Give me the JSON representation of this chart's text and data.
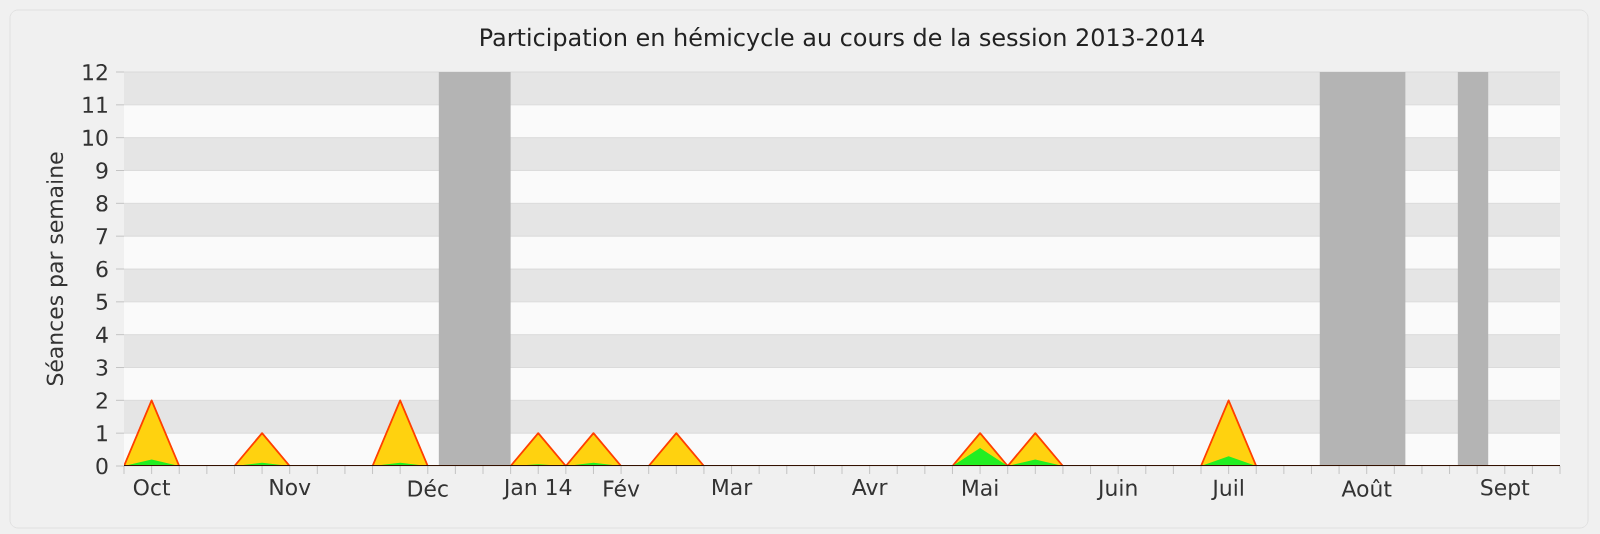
{
  "chart_data": {
    "type": "area",
    "title": "Participation en hémicycle au cours de la session 2013-2014",
    "ylabel": "Séances par semaine",
    "categories": [
      null,
      "Oct",
      null,
      null,
      null,
      null,
      "Nov",
      null,
      null,
      null,
      null,
      "Déc",
      null,
      null,
      null,
      "Jan 14",
      null,
      null,
      "Fév",
      null,
      null,
      null,
      "Mar",
      null,
      null,
      null,
      null,
      "Avr",
      null,
      null,
      null,
      "Mai",
      null,
      null,
      null,
      null,
      "Juin",
      null,
      null,
      null,
      "Juil",
      null,
      null,
      null,
      null,
      "Août",
      null,
      null,
      null,
      null,
      "Sept",
      null,
      null
    ],
    "series": [
      {
        "color": "#ffd20f",
        "values": [
          0,
          2,
          0,
          0,
          0,
          1,
          0,
          0,
          0,
          0,
          2,
          0,
          0,
          0,
          0,
          1,
          0,
          1,
          0,
          0,
          1,
          0,
          0,
          0,
          0,
          0,
          0,
          0,
          0,
          0,
          0,
          1,
          0,
          1,
          0,
          0,
          0,
          0,
          0,
          0,
          2,
          0,
          0,
          0,
          0,
          0,
          0,
          0,
          0,
          0,
          0,
          0,
          0
        ]
      },
      {
        "color": "#22ee22",
        "values": [
          0,
          0.2,
          0,
          0,
          0,
          0.1,
          0,
          0,
          0,
          0,
          0.1,
          0,
          0,
          0,
          0,
          0.05,
          0,
          0.1,
          0,
          0,
          0,
          0,
          0,
          0,
          0,
          0,
          0,
          0,
          0,
          0,
          0,
          0.55,
          0,
          0.2,
          0,
          0,
          0,
          0,
          0,
          0,
          0.3,
          0,
          0,
          0,
          0,
          0,
          0,
          0,
          0,
          0,
          0,
          0,
          0
        ]
      }
    ],
    "ylim": [
      0,
      12
    ],
    "yticks": [
      0,
      1,
      2,
      3,
      4,
      5,
      6,
      7,
      8,
      9,
      10,
      11,
      12
    ],
    "grid": "y"
  }
}
